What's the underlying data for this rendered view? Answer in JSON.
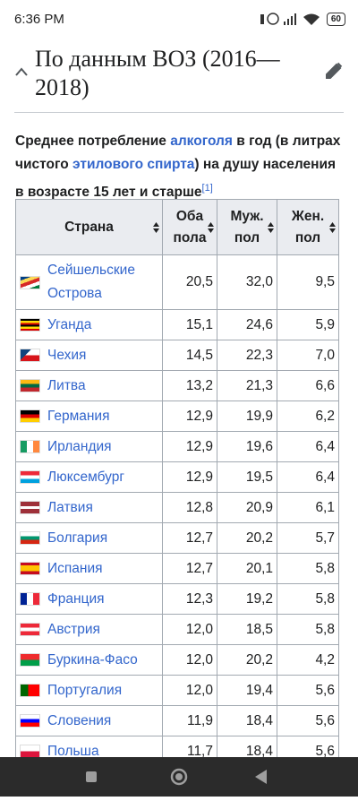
{
  "status_bar": {
    "time": "6:36 PM",
    "battery": "60"
  },
  "section": {
    "title": "По данным ВОЗ (2016—2018)"
  },
  "caption": {
    "parts": [
      "Среднее потребление ",
      "алкоголя",
      " в год (в литрах чистого ",
      "этилового спирта",
      ") на душу населения в возрасте 15 лет и старше"
    ],
    "ref": "[1]"
  },
  "table": {
    "headers": [
      "Страна",
      "Оба пола",
      "Муж. пол",
      "Жен. пол"
    ],
    "rows": [
      [
        "Сейшельские Острова",
        "20,5",
        "32,0",
        "9,5"
      ],
      [
        "Уганда",
        "15,1",
        "24,6",
        "5,9"
      ],
      [
        "Чехия",
        "14,5",
        "22,3",
        "7,0"
      ],
      [
        "Литва",
        "13,2",
        "21,3",
        "6,6"
      ],
      [
        "Германия",
        "12,9",
        "19,9",
        "6,2"
      ],
      [
        "Ирландия",
        "12,9",
        "19,6",
        "6,4"
      ],
      [
        "Люксембург",
        "12,9",
        "19,5",
        "6,4"
      ],
      [
        "Латвия",
        "12,8",
        "20,9",
        "6,1"
      ],
      [
        "Болгария",
        "12,7",
        "20,2",
        "5,7"
      ],
      [
        "Испания",
        "12,7",
        "20,1",
        "5,8"
      ],
      [
        "Франция",
        "12,3",
        "19,2",
        "5,8"
      ],
      [
        "Австрия",
        "12,0",
        "18,5",
        "5,8"
      ],
      [
        "Буркина-Фасо",
        "12,0",
        "20,2",
        "4,2"
      ],
      [
        "Португалия",
        "12,0",
        "19,4",
        "5,6"
      ],
      [
        "Словения",
        "11,9",
        "18,4",
        "5,6"
      ],
      [
        "Польша",
        "11,7",
        "18,4",
        "5,6"
      ]
    ]
  }
}
